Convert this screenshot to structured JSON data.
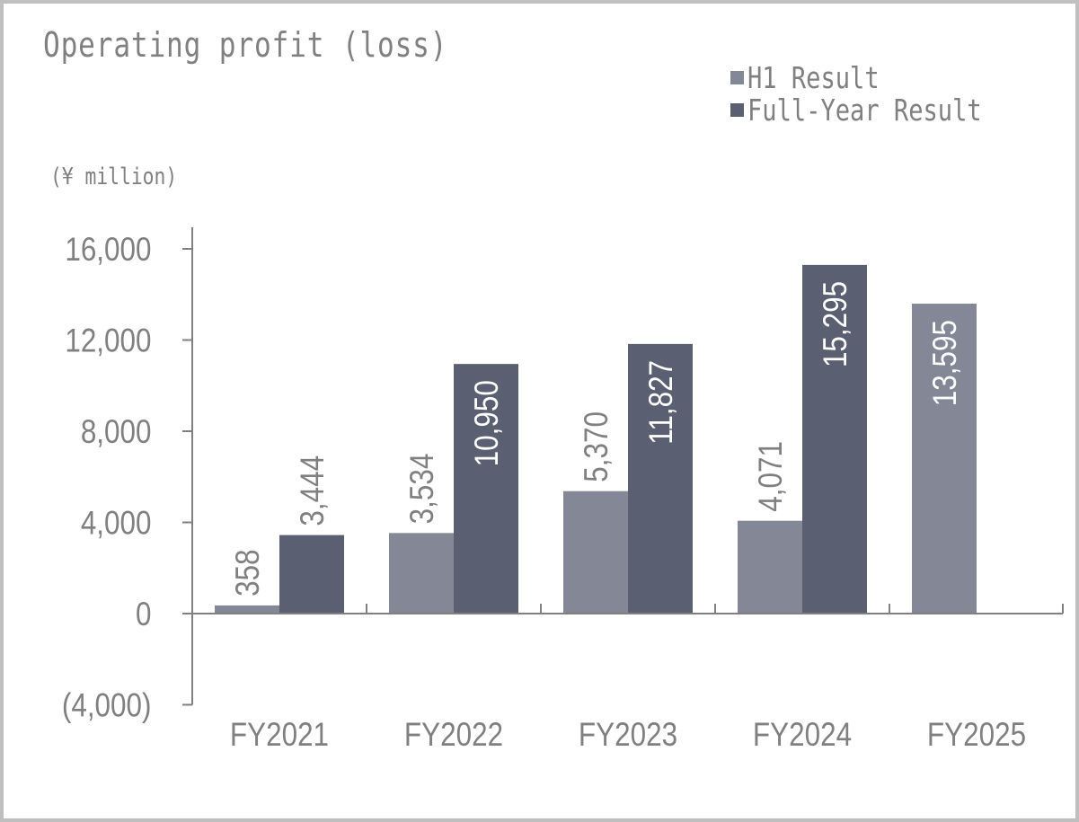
{
  "chart_data": {
    "type": "bar",
    "title": "Operating profit (loss)",
    "unit_label": "(¥ million)",
    "xlabel": "",
    "ylabel": "(¥ million)",
    "ylim": [
      -4000,
      16000
    ],
    "yticks": [
      16000,
      12000,
      8000,
      4000,
      0,
      -4000
    ],
    "ytick_labels": [
      "16,000",
      "12,000",
      "8,000",
      "4,000",
      "0",
      "(4,000)"
    ],
    "grid": false,
    "legend_position": "top-right",
    "categories": [
      "FY2021",
      "FY2022",
      "FY2023",
      "FY2024",
      "FY2025"
    ],
    "series": [
      {
        "name": "H1 Result",
        "color": "#848796",
        "values": [
          358,
          3534,
          5370,
          4071,
          13595
        ],
        "labels": [
          "358",
          "3,534",
          "5,370",
          "4,071",
          "13,595"
        ]
      },
      {
        "name": "Full-Year Result",
        "color": "#5a5f71",
        "values": [
          3444,
          10950,
          11827,
          15295,
          null
        ],
        "labels": [
          "3,444",
          "10,950",
          "11,827",
          "15,295",
          ""
        ]
      }
    ]
  },
  "legend": {
    "items": [
      {
        "label": "H1 Result",
        "color": "#848796"
      },
      {
        "label": "Full-Year Result",
        "color": "#5a5f71"
      }
    ]
  },
  "colors": {
    "text": "#808080",
    "axis": "#808080",
    "frame": "#bfbfbf",
    "label_inside": "#ffffff"
  }
}
